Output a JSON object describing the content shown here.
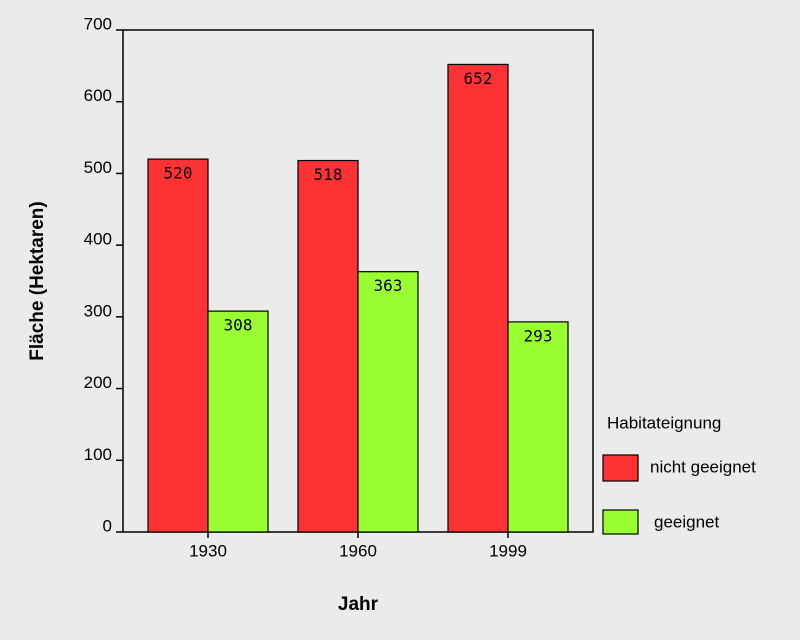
{
  "chart_data": {
    "type": "bar",
    "x_label": "Jahr",
    "y_label": "Fläche (Hektaren)",
    "categories": [
      "1930",
      "1960",
      "1999"
    ],
    "legend_title": "Habitateignung",
    "series": [
      {
        "name": "nicht geeignet",
        "color": "#ff3333",
        "values": [
          520,
          518,
          652
        ]
      },
      {
        "name": "geeignet",
        "color": "#99ff33",
        "values": [
          308,
          363,
          293
        ]
      }
    ],
    "ylim": [
      0,
      700
    ],
    "yticks": [
      0,
      100,
      200,
      300,
      400,
      500,
      600,
      700
    ],
    "legend": "right",
    "data_labels": true
  }
}
